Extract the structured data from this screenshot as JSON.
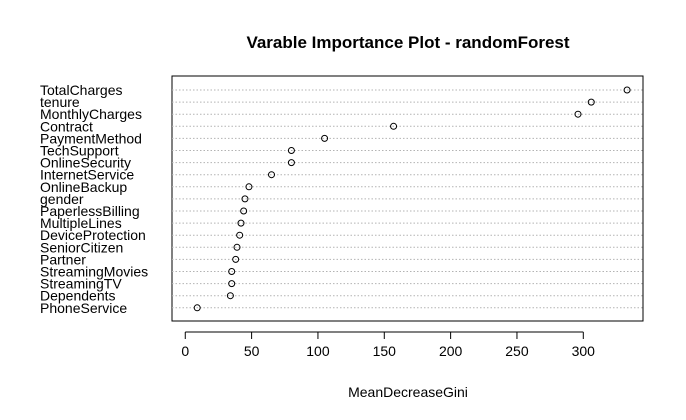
{
  "chart_data": {
    "type": "scatter",
    "title": "Varable Importance Plot - randomForest",
    "xlabel": "MeanDecreaseGini",
    "ylabel": "",
    "xlim": [
      -10,
      345
    ],
    "xticks": [
      0,
      50,
      100,
      150,
      200,
      250,
      300
    ],
    "grid": "horizontal dotted",
    "point_style": "open circle",
    "categories": [
      "TotalCharges",
      "tenure",
      "MonthlyCharges",
      "Contract",
      "PaymentMethod",
      "TechSupport",
      "OnlineSecurity",
      "InternetService",
      "OnlineBackup",
      "gender",
      "PaperlessBilling",
      "MultipleLines",
      "DeviceProtection",
      "SeniorCitizen",
      "Partner",
      "StreamingMovies",
      "StreamingTV",
      "Dependents",
      "PhoneService"
    ],
    "values": [
      333,
      306,
      296,
      157,
      105,
      80,
      80,
      65,
      48,
      45,
      44,
      42,
      41,
      39,
      38,
      35,
      35,
      34,
      9
    ]
  }
}
